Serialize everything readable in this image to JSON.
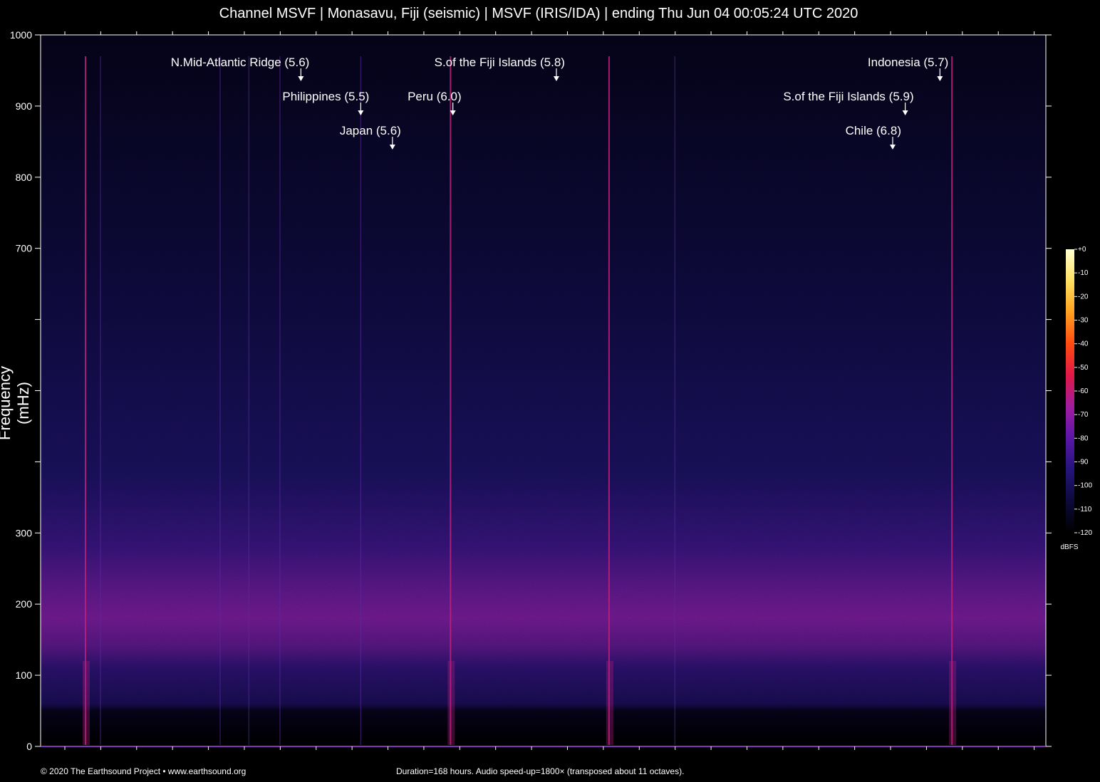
{
  "page": {
    "title": "Channel MSVF | Monasavu, Fiji (seismic) | MSVF (IRIS/IDA) | ending Thu Jun 04 00:05:24 UTC 2020",
    "footer_left": "© 2020 The Earthsound Project • www.earthsound.org",
    "footer_right": "Duration=168 hours. Audio speed-up=1800× (transposed about 11 octaves)."
  },
  "chart_data": {
    "type": "heatmap",
    "title": "Channel MSVF | Monasavu, Fiji (seismic) | MSVF (IRIS/IDA) | ending Thu Jun 04 00:05:24 UTC 2020",
    "xlabel": "",
    "ylabel": "Frequency (mHz)",
    "duration_hours": 168,
    "ylim": [
      0,
      1000
    ],
    "yticks": [
      {
        "value": 0,
        "label": "0"
      },
      {
        "value": 100,
        "label": "100"
      },
      {
        "value": 200,
        "label": "200"
      },
      {
        "value": 300,
        "label": "300"
      },
      {
        "value": 400,
        "label": ""
      },
      {
        "value": 500,
        "label": ""
      },
      {
        "value": 600,
        "label": ""
      },
      {
        "value": 700,
        "label": "700"
      },
      {
        "value": 800,
        "label": "800"
      },
      {
        "value": 900,
        "label": "900"
      },
      {
        "value": 1000,
        "label": "1000"
      }
    ],
    "events": [
      {
        "label": "N.Mid-Atlantic Ridge (5.6)",
        "time_hours": 43.5,
        "row": 1
      },
      {
        "label": "Philippines (5.5)",
        "time_hours": 53.5,
        "row": 2
      },
      {
        "label": "Japan (5.6)",
        "time_hours": 58.8,
        "row": 3
      },
      {
        "label": "Peru (6.0)",
        "time_hours": 68.9,
        "row": 2
      },
      {
        "label": "S.of the Fiji Islands (5.8)",
        "time_hours": 86.2,
        "row": 1
      },
      {
        "label": "S.of the Fiji Islands (5.9)",
        "time_hours": 144.5,
        "row": 2
      },
      {
        "label": "Chile (6.8)",
        "time_hours": 142.4,
        "row": 3
      },
      {
        "label": "Indonesia (5.7)",
        "time_hours": 150.3,
        "row": 1
      }
    ],
    "colorbar": {
      "unit": "dBFS",
      "ticks": [
        "+0",
        "-10",
        "-20",
        "-30",
        "-40",
        "-50",
        "-60",
        "-70",
        "-80",
        "-90",
        "-100",
        "-110",
        "-120"
      ],
      "colors": [
        "#000000",
        "#0c0a3a",
        "#24147a",
        "#5a16a8",
        "#a01ca0",
        "#e01848",
        "#ff4a10",
        "#ffa020",
        "#ffe060",
        "#ffffd0"
      ]
    },
    "vertical_signals_hours": [
      7.5,
      10.0,
      30.0,
      34.8,
      40.0,
      53.5,
      68.5,
      95.0,
      106.0,
      152.3
    ],
    "background_band_mHz": [
      130,
      260
    ],
    "grid": false
  }
}
